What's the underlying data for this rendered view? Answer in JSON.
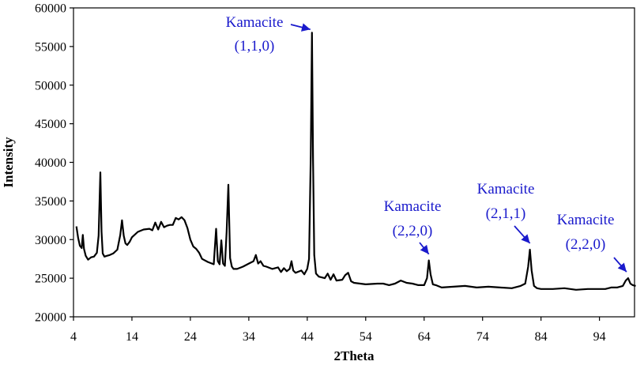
{
  "chart_data": {
    "type": "line",
    "title": "",
    "xlabel": "2Theta",
    "ylabel": "Intensity",
    "xlim": [
      4,
      100
    ],
    "ylim": [
      20000,
      60000
    ],
    "x_ticks": [
      4,
      14,
      24,
      34,
      44,
      54,
      64,
      74,
      84,
      94
    ],
    "y_ticks": [
      20000,
      25000,
      30000,
      35000,
      40000,
      45000,
      50000,
      55000,
      60000
    ],
    "line_color": "#000000",
    "grid": false,
    "legend": "none",
    "series": [
      {
        "x": [
          4.5,
          4.8,
          5.1,
          5.4,
          5.6,
          5.8,
          6.1,
          6.5,
          7.0,
          7.5,
          8.0,
          8.3,
          8.6,
          8.8,
          9.0,
          9.3,
          9.7,
          10.2,
          10.8,
          11.5,
          12.0,
          12.3,
          12.6,
          12.9,
          13.2,
          13.6,
          14.0,
          15.0,
          16.0,
          17.0,
          17.5,
          18.0,
          18.5,
          19.0,
          19.5,
          20.0,
          20.5,
          21.0,
          21.5,
          22.0,
          22.5,
          23.0,
          23.5,
          24.0,
          24.5,
          25.0,
          25.5,
          26.0,
          27.0,
          28.0,
          28.4,
          28.7,
          29.0,
          29.3,
          29.6,
          29.9,
          30.2,
          30.5,
          30.8,
          31.1,
          31.4,
          32.0,
          33.0,
          34.0,
          34.8,
          35.2,
          35.6,
          36.0,
          36.5,
          37.0,
          38.0,
          39.0,
          39.5,
          40.0,
          40.5,
          41.0,
          41.3,
          41.6,
          42.0,
          43.0,
          43.5,
          44.0,
          44.3,
          44.6,
          44.8,
          45.0,
          45.2,
          45.5,
          46.0,
          47.0,
          47.5,
          48.0,
          48.5,
          49.0,
          50.0,
          50.5,
          51.0,
          51.5,
          52.0,
          54.0,
          56.0,
          57.0,
          58.0,
          59.0,
          60.0,
          61.0,
          62.0,
          63.0,
          64.0,
          64.5,
          64.8,
          65.1,
          65.5,
          66.0,
          67.0,
          69.0,
          71.0,
          73.0,
          75.0,
          77.0,
          79.0,
          80.5,
          81.3,
          81.8,
          82.1,
          82.4,
          82.8,
          83.3,
          84.0,
          86.0,
          88.0,
          90.0,
          92.0,
          94.0,
          95.0,
          96.0,
          97.0,
          98.0,
          98.5,
          98.9,
          99.3,
          99.7,
          100.2
        ],
        "y": [
          31700,
          30200,
          29200,
          28900,
          30600,
          28800,
          27900,
          27400,
          27700,
          27800,
          28300,
          30500,
          38700,
          31000,
          28200,
          27800,
          27900,
          28000,
          28200,
          28700,
          30600,
          32500,
          30500,
          29500,
          29300,
          29700,
          30300,
          31000,
          31300,
          31400,
          31200,
          32200,
          31300,
          32300,
          31600,
          31800,
          31900,
          31900,
          32800,
          32600,
          32900,
          32500,
          31500,
          30000,
          29100,
          28800,
          28300,
          27500,
          27100,
          26800,
          31400,
          27200,
          26800,
          29900,
          26900,
          26600,
          31000,
          37100,
          27600,
          26500,
          26200,
          26200,
          26500,
          26900,
          27200,
          28000,
          26900,
          27200,
          26600,
          26500,
          26200,
          26400,
          25800,
          26300,
          25900,
          26200,
          27200,
          26000,
          25700,
          26000,
          25500,
          26200,
          27500,
          41000,
          56800,
          40000,
          28000,
          25600,
          25200,
          25000,
          25600,
          24800,
          25500,
          24700,
          24800,
          25400,
          25700,
          24600,
          24400,
          24200,
          24300,
          24300,
          24100,
          24300,
          24700,
          24400,
          24300,
          24100,
          24100,
          25000,
          27300,
          25500,
          24200,
          24100,
          23800,
          23900,
          24000,
          23800,
          23900,
          23800,
          23700,
          24000,
          24300,
          26500,
          28700,
          26000,
          24000,
          23700,
          23600,
          23600,
          23700,
          23500,
          23600,
          23600,
          23600,
          23800,
          23800,
          24000,
          24700,
          25000,
          24300,
          24100,
          24000
        ]
      }
    ],
    "annotations": [
      {
        "line1": "Kamacite",
        "line2": "(1,1,0)",
        "x": 44.8,
        "y": 56800
      },
      {
        "line1": "Kamacite",
        "line2": "(2,2,0)",
        "x": 64.8,
        "y": 27300
      },
      {
        "line1": "Kamacite",
        "line2": "(2,1,1)",
        "x": 82.1,
        "y": 28700
      },
      {
        "line1": "Kamacite",
        "line2": "(2,2,0)",
        "x": 98.9,
        "y": 25000
      }
    ],
    "annotation_color": "#1a1acc"
  }
}
